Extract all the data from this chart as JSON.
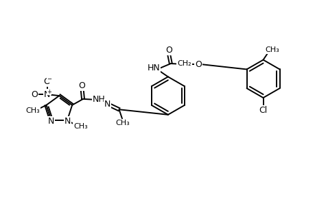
{
  "bg_color": "#ffffff",
  "line_color": "#000000",
  "bond_lw": 1.4,
  "font_size": 8.5,
  "fig_width": 4.6,
  "fig_height": 3.0,
  "dpi": 100,
  "xlim": [
    0,
    46
  ],
  "ylim": [
    0,
    30
  ]
}
